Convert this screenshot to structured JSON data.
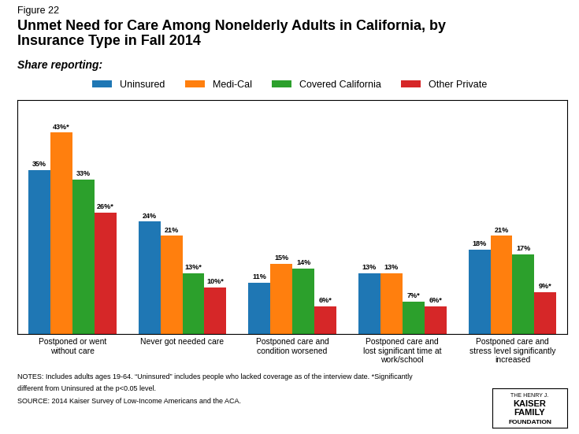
{
  "chart_data": {
    "type": "bar",
    "title": "Unmet Need for Care Among Nonelderly Adults in California, by\nInsurance Type in Fall 2014",
    "subtitle": "Share reporting:",
    "categories": [
      "Postponed or went\nwithout care",
      "Never got needed care",
      "Postponed care and\ncondition worsened",
      "Postponed care and\nlost significant time at\nwork/school",
      "Postponed care and\nstress level significantly\nincreased"
    ],
    "series": [
      {
        "name": "Uninsured",
        "values": [
          35,
          24,
          11,
          13,
          18
        ],
        "value_labels": [
          "35%",
          "24%",
          "11%",
          "13%",
          "18%"
        ]
      },
      {
        "name": "Medi-Cal",
        "values": [
          43,
          21,
          15,
          13,
          21
        ],
        "value_labels": [
          "43%*",
          "21%",
          "15%",
          "13%",
          "21%"
        ]
      },
      {
        "name": "Covered California",
        "values": [
          33,
          13,
          14,
          7,
          17
        ],
        "value_labels": [
          "33%",
          "13%*",
          "14%",
          "7%*",
          "17%"
        ]
      },
      {
        "name": "Other Private",
        "values": [
          26,
          10,
          6,
          6,
          9
        ],
        "value_labels": [
          "26%*",
          "10%*",
          "6%*",
          "6%*",
          "9%*"
        ]
      }
    ],
    "ylim": [
      0,
      50
    ],
    "data_labels": true,
    "tick_labels": "x",
    "legend": "upper center",
    "grid": false,
    "annotations": [
      "Figure 22",
      "NOTES: Includes adults ages 19-64. “Uninsured” includes people who lacked coverage as of the interview date. *Significantly",
      "different from Uninsured at the p<0.05 level.",
      "SOURCE: 2014 Kaiser Survey of Low-Income Americans and the ACA.",
      "THE HENRY J.",
      "KAISER",
      "FAMILY",
      "FOUNDATION"
    ]
  }
}
